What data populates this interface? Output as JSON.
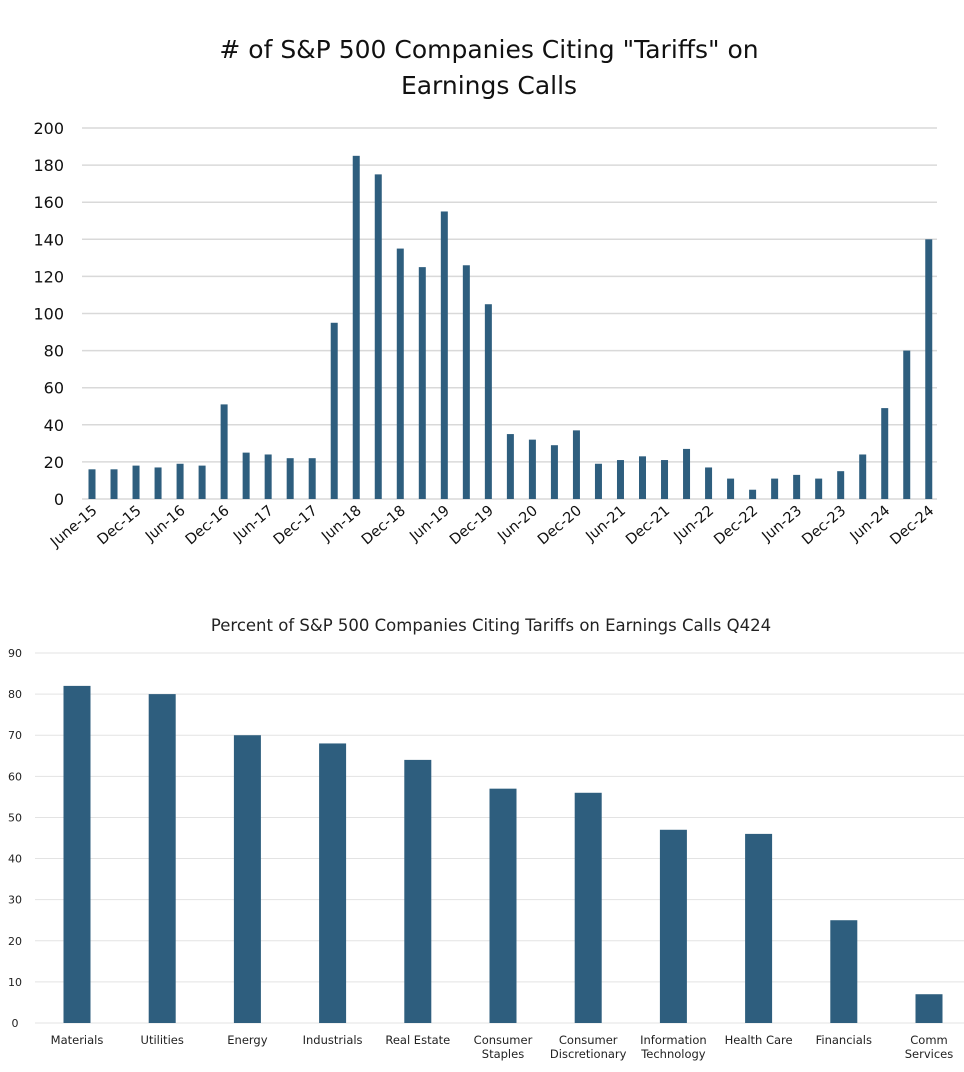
{
  "chart_data": [
    {
      "type": "bar",
      "title_lines": [
        "# of S&P 500 Companies Citing \"Tariffs\" on",
        "Earnings Calls"
      ],
      "xlabel": "",
      "ylabel": "",
      "ylim": [
        0,
        200
      ],
      "yticks": [
        0,
        20,
        40,
        60,
        80,
        100,
        120,
        140,
        160,
        180,
        200
      ],
      "grid": true,
      "color": "#2e5e7e",
      "categories": [
        "Jun-15",
        "Sep-15",
        "Dec-15",
        "Mar-16",
        "Jun-16",
        "Sep-16",
        "Dec-16",
        "Mar-17",
        "Jun-17",
        "Sep-17",
        "Dec-17",
        "Mar-18",
        "Jun-18",
        "Sep-18",
        "Dec-18",
        "Mar-19",
        "Jun-19",
        "Sep-19",
        "Dec-19",
        "Mar-20",
        "Jun-20",
        "Sep-20",
        "Dec-20",
        "Mar-21",
        "Jun-21",
        "Sep-21",
        "Dec-21",
        "Mar-22",
        "Jun-22",
        "Sep-22",
        "Dec-22",
        "Mar-23",
        "Jun-23",
        "Sep-23",
        "Dec-23",
        "Mar-24",
        "Jun-24",
        "Sep-24",
        "Dec-24"
      ],
      "values": [
        16,
        16,
        18,
        17,
        19,
        18,
        51,
        25,
        24,
        22,
        22,
        95,
        185,
        175,
        135,
        125,
        155,
        126,
        105,
        35,
        32,
        29,
        37,
        19,
        21,
        23,
        21,
        27,
        17,
        11,
        5,
        11,
        13,
        11,
        15,
        24,
        49,
        80,
        140
      ],
      "xtick_labels": [
        "June-15",
        "Dec-15",
        "Jun-16",
        "Dec-16",
        "Jun-17",
        "Dec-17",
        "Jun-18",
        "Dec-18",
        "Jun-19",
        "Dec-19",
        "Jun-20",
        "Dec-20",
        "Jun-21",
        "Dec-21",
        "Jun-22",
        "Dec-22",
        "Jun-23",
        "Dec-23",
        "Jun-24",
        "Dec-24"
      ],
      "legend": "none"
    },
    {
      "type": "bar",
      "title": "Percent of S&P 500 Companies Citing Tariffs on Earnings Calls Q424",
      "xlabel": "",
      "ylabel": "",
      "ylim": [
        0,
        90
      ],
      "yticks": [
        0,
        10,
        20,
        30,
        40,
        50,
        60,
        70,
        80,
        90
      ],
      "grid": true,
      "color": "#2e5e7e",
      "categories": [
        [
          "Materials"
        ],
        [
          "Utilities"
        ],
        [
          "Energy"
        ],
        [
          "Industrials"
        ],
        [
          "Real Estate"
        ],
        [
          "Consumer",
          "Staples"
        ],
        [
          "Consumer",
          "Discretionary"
        ],
        [
          "Information",
          "Technology"
        ],
        [
          "Health Care"
        ],
        [
          "Financials"
        ],
        [
          "Comm",
          "Services"
        ]
      ],
      "values": [
        82,
        80,
        70,
        68,
        64,
        57,
        56,
        47,
        46,
        25,
        7
      ],
      "legend": "none"
    }
  ]
}
